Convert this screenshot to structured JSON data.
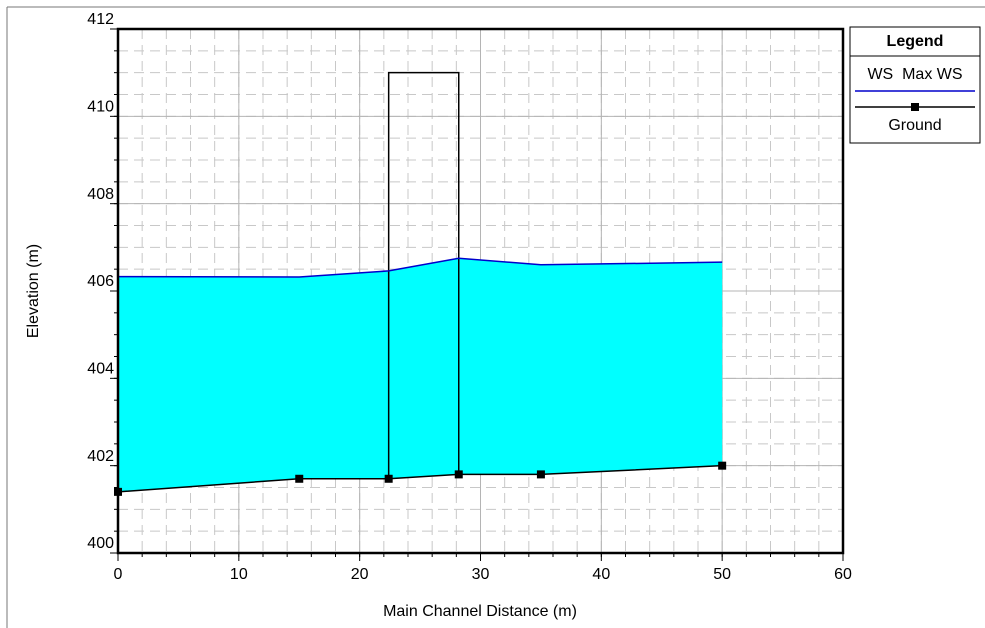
{
  "chart_data": {
    "type": "profile",
    "xlabel": "Main Channel Distance (m)",
    "ylabel": "Elevation (m)",
    "x": [
      0,
      15,
      22.4,
      28.2,
      35,
      50
    ],
    "series": [
      {
        "name": "WS  Max WS",
        "color": "#0000cc",
        "fill": "#00ffff",
        "values": [
          406.33,
          406.32,
          406.46,
          406.75,
          406.6,
          406.66
        ]
      },
      {
        "name": "Ground",
        "color": "#000000",
        "values": [
          401.4,
          401.7,
          401.7,
          401.8,
          401.8,
          402.0
        ]
      }
    ],
    "structure": {
      "x": [
        22.4,
        22.4,
        28.2,
        28.2
      ],
      "y": [
        401.7,
        411,
        411,
        401.8
      ]
    },
    "xlim": [
      0,
      60
    ],
    "ylim": [
      400,
      412
    ],
    "xticks": [
      0,
      10,
      20,
      30,
      40,
      50,
      60
    ],
    "yticks": [
      400,
      402,
      404,
      406,
      408,
      410,
      412
    ],
    "grid": true,
    "minor_grid_step": [
      2,
      0.5
    ],
    "legend_title": "Legend",
    "legend": "top-right"
  }
}
